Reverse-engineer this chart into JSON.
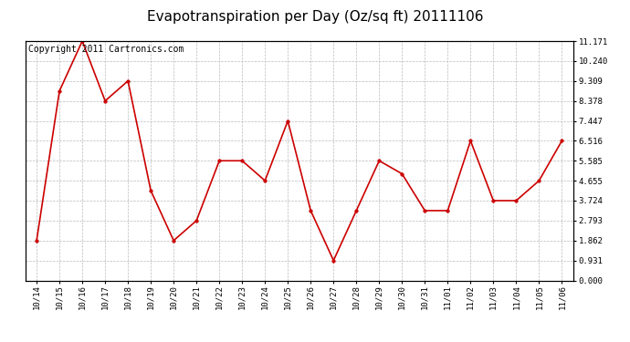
{
  "title": "Evapotranspiration per Day (Oz/sq ft) 20111106",
  "copyright": "Copyright 2011 Cartronics.com",
  "x_labels": [
    "10/14",
    "10/15",
    "10/16",
    "10/17",
    "10/18",
    "10/19",
    "10/20",
    "10/21",
    "10/22",
    "10/23",
    "10/24",
    "10/25",
    "10/26",
    "10/27",
    "10/28",
    "10/29",
    "10/30",
    "10/31",
    "11/01",
    "11/02",
    "11/03",
    "11/04",
    "11/05",
    "11/06"
  ],
  "y_values": [
    1.862,
    8.843,
    11.171,
    8.378,
    9.309,
    4.19,
    1.862,
    2.793,
    5.585,
    5.585,
    4.655,
    7.447,
    3.258,
    0.931,
    3.258,
    5.585,
    4.976,
    3.258,
    3.258,
    6.516,
    3.724,
    3.724,
    4.655,
    6.516
  ],
  "y_ticks": [
    0.0,
    0.931,
    1.862,
    2.793,
    3.724,
    4.655,
    5.585,
    6.516,
    7.447,
    8.378,
    9.309,
    10.24,
    11.171
  ],
  "line_color": "#cc0000",
  "marker_color": "#cc0000",
  "bg_color": "#ffffff",
  "grid_color": "#bbbbbb",
  "ylim": [
    0.0,
    11.171
  ],
  "title_fontsize": 11,
  "copyright_fontsize": 7
}
